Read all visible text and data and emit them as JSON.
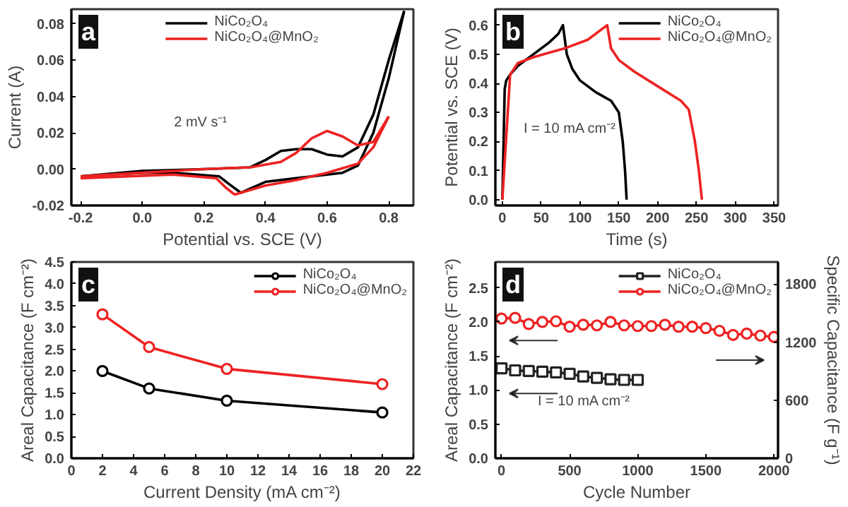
{
  "chart_data": [
    {
      "type": "line",
      "title": "a",
      "xlabel": "Potential vs. SCE (V)",
      "ylabel": "Current (A)",
      "legend": "top",
      "annotations": [
        "2 mV s⁻¹"
      ],
      "xlim": [
        -0.23,
        0.88
      ],
      "ylim": [
        -0.02,
        0.088
      ],
      "xticks": [
        -0.2,
        {
          "value": 0,
          "label": "0.0"
        },
        0.2,
        0.4,
        0.6,
        0.8
      ],
      "yticks": [
        -0.02,
        {
          "value": 0,
          "label": "0.00"
        },
        0.02,
        0.04,
        0.06,
        0.08
      ],
      "series": [
        {
          "name": "NiCo₂O₄",
          "color": "#000000",
          "x": [
            -0.2,
            0.0,
            0.2,
            0.35,
            0.4,
            0.45,
            0.5,
            0.55,
            0.6,
            0.65,
            0.7,
            0.75,
            0.8,
            0.85
          ],
          "values": [
            -0.004,
            -0.001,
            0.0,
            0.001,
            0.005,
            0.01,
            0.011,
            0.011,
            0.008,
            0.007,
            0.012,
            0.03,
            0.06,
            0.087
          ]
        },
        {
          "color": "#000000",
          "x": [
            -0.2,
            0.0,
            0.1,
            0.25,
            0.28,
            0.32,
            0.4,
            0.5,
            0.6,
            0.65,
            0.7,
            0.75,
            0.8,
            0.85
          ],
          "values": [
            -0.004,
            -0.002,
            -0.002,
            -0.004,
            -0.008,
            -0.013,
            -0.007,
            -0.005,
            -0.003,
            -0.002,
            0.002,
            0.02,
            0.05,
            0.087
          ]
        },
        {
          "name": "NiCo₂O₄@MnO₂",
          "color": "#ee2222",
          "x": [
            -0.2,
            0.0,
            0.2,
            0.35,
            0.45,
            0.5,
            0.55,
            0.6,
            0.65,
            0.7,
            0.75,
            0.8
          ],
          "values": [
            -0.004,
            -0.002,
            0.0,
            0.001,
            0.004,
            0.009,
            0.017,
            0.021,
            0.018,
            0.013,
            0.015,
            0.029
          ]
        },
        {
          "color": "#ee2222",
          "x": [
            -0.2,
            0.1,
            0.24,
            0.27,
            0.3,
            0.4,
            0.5,
            0.6,
            0.7,
            0.75,
            0.8
          ],
          "values": [
            -0.005,
            -0.003,
            -0.005,
            -0.01,
            -0.014,
            -0.009,
            -0.006,
            -0.002,
            0.003,
            0.012,
            0.029
          ]
        }
      ]
    },
    {
      "type": "line",
      "title": "b",
      "xlabel": "Time (s)",
      "ylabel": "Potential vs. SCE (V)",
      "legend": "top right",
      "annotations": [
        "I = 10 mA cm⁻²"
      ],
      "xlim": [
        -9,
        355
      ],
      "ylim": [
        -0.02,
        0.655
      ],
      "xticks": [
        0,
        50,
        100,
        150,
        200,
        250,
        300,
        350
      ],
      "yticks": [
        {
          "value": 0,
          "label": "0.0"
        },
        0.1,
        0.2,
        0.3,
        0.4,
        0.5,
        0.6
      ],
      "series": [
        {
          "name": "NiCo₂O₄",
          "color": "#000000",
          "x": [
            0,
            3,
            5,
            10,
            20,
            40,
            60,
            72,
            78,
            83,
            90,
            100,
            120,
            140,
            150,
            155,
            158,
            160
          ],
          "values": [
            0,
            0.38,
            0.41,
            0.43,
            0.46,
            0.5,
            0.54,
            0.57,
            0.6,
            0.5,
            0.45,
            0.41,
            0.37,
            0.34,
            0.3,
            0.2,
            0.1,
            0
          ]
        },
        {
          "name": "NiCo₂O₄@MnO₂",
          "color": "#ee2222",
          "x": [
            0,
            10,
            20,
            40,
            80,
            110,
            135,
            140,
            150,
            170,
            200,
            230,
            240,
            248,
            253,
            257
          ],
          "values": [
            0,
            0.43,
            0.47,
            0.49,
            0.52,
            0.55,
            0.6,
            0.52,
            0.48,
            0.44,
            0.39,
            0.34,
            0.31,
            0.2,
            0.1,
            0
          ]
        }
      ]
    },
    {
      "type": "line",
      "title": "c",
      "xlabel": "Current Density (mA cm⁻²)",
      "ylabel": "Areal Capacitance (F cm⁻²)",
      "legend": "top right",
      "marker": "circle",
      "xlim": [
        0,
        22
      ],
      "ylim": [
        0,
        4.5
      ],
      "xticks": [
        0,
        2,
        4,
        6,
        8,
        10,
        12,
        14,
        16,
        18,
        20,
        22
      ],
      "yticks": [
        {
          "value": 0,
          "label": "0.0"
        },
        0.5,
        {
          "value": 1,
          "label": "1.0"
        },
        1.5,
        {
          "value": 2,
          "label": "2.0"
        },
        2.5,
        {
          "value": 3,
          "label": "3.0"
        },
        3.5,
        {
          "value": 4,
          "label": "4.0"
        },
        4.5
      ],
      "series": [
        {
          "name": "NiCo₂O₄",
          "color": "#000000",
          "x": [
            2,
            5,
            10,
            20
          ],
          "values": [
            2.0,
            1.6,
            1.32,
            1.05
          ]
        },
        {
          "name": "NiCo₂O₄@MnO₂",
          "color": "#ee2222",
          "x": [
            2,
            5,
            10,
            20
          ],
          "values": [
            3.3,
            2.55,
            2.05,
            1.7
          ]
        }
      ]
    },
    {
      "type": "line",
      "title": "d",
      "xlabel": "Cycle Number",
      "ylabel": "Areal Capacitance (F cm⁻²)",
      "y2label": "Specific Capacitance (F g⁻¹)",
      "legend": "top right",
      "annotations": [
        "I = 10 mA cm⁻²"
      ],
      "xlim": [
        -45,
        2030
      ],
      "ylim": [
        0,
        2.88
      ],
      "y2lim": [
        0,
        2030
      ],
      "xticks": [
        0,
        500,
        1000,
        1500,
        2000
      ],
      "yticks": [
        {
          "value": 0,
          "label": "0.0"
        },
        0.5,
        {
          "value": 1,
          "label": "1.0"
        },
        1.5,
        {
          "value": 2,
          "label": "2.0"
        },
        2.5
      ],
      "y2ticks": [
        0,
        600,
        1200,
        1800
      ],
      "series": [
        {
          "name": "NiCo₂O₄",
          "color": "#222222",
          "marker": "square",
          "x": [
            0,
            100,
            200,
            300,
            400,
            500,
            600,
            700,
            800,
            900,
            1000
          ],
          "values": [
            1.32,
            1.29,
            1.28,
            1.27,
            1.26,
            1.24,
            1.2,
            1.18,
            1.16,
            1.15,
            1.15
          ]
        },
        {
          "name": "NiCo₂O₄@MnO₂",
          "color": "#ee2222",
          "marker": "circle",
          "x": [
            0,
            100,
            200,
            300,
            400,
            500,
            600,
            700,
            800,
            900,
            1000,
            1100,
            1200,
            1300,
            1400,
            1500,
            1600,
            1700,
            1800,
            1900,
            2000
          ],
          "values": [
            2.05,
            2.06,
            1.97,
            2.0,
            2.01,
            1.93,
            1.96,
            1.95,
            2.0,
            1.95,
            1.94,
            1.94,
            1.96,
            1.93,
            1.93,
            1.91,
            1.87,
            1.81,
            1.83,
            1.8,
            1.78
          ]
        }
      ]
    }
  ]
}
